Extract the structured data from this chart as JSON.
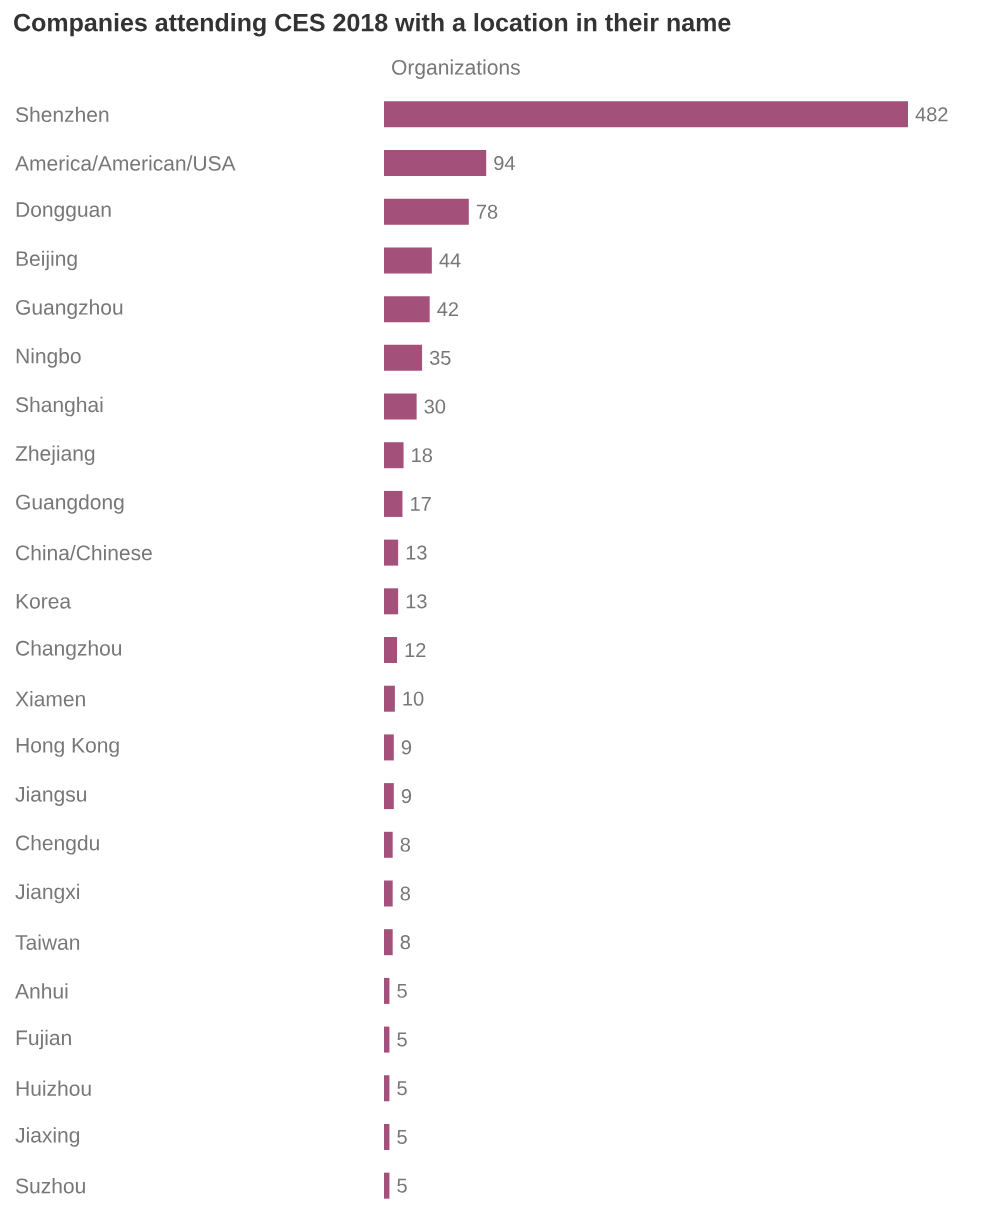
{
  "chart_data": {
    "type": "bar",
    "orientation": "horizontal",
    "title": "Companies attending CES 2018 with a location in their name",
    "xlabel": "Organizations",
    "categories": [
      "Shenzhen",
      "America/American/USA",
      "Dongguan",
      "Beijing",
      "Guangzhou",
      "Ningbo",
      "Shanghai",
      "Zhejiang",
      "Guangdong",
      "China/Chinese",
      "Korea",
      "Changzhou",
      "Xiamen",
      "Hong Kong",
      "Jiangsu",
      "Chengdu",
      "Jiangxi",
      "Taiwan",
      "Anhui",
      "Fujian",
      "Huizhou",
      "Jiaxing",
      "Suzhou"
    ],
    "values": [
      482,
      94,
      78,
      44,
      42,
      35,
      30,
      18,
      17,
      13,
      13,
      12,
      10,
      9,
      9,
      8,
      8,
      8,
      5,
      5,
      5,
      5,
      5
    ],
    "color": "#a3507a",
    "data_labels": true,
    "grid": false
  }
}
